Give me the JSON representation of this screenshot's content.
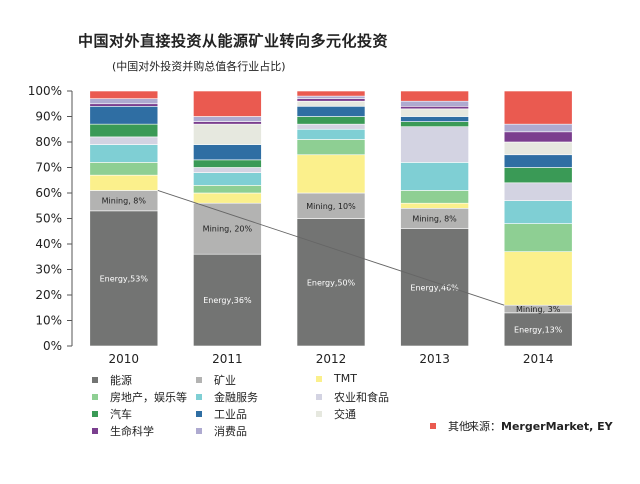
{
  "title": "中国对外直接投资从能源矿业转向多元化投资",
  "subtitle": "(中国对外投资并购总值各行业占比)",
  "source_prefix": "来源：",
  "source_text": "MergerMarket, EY",
  "chart_data": {
    "type": "bar",
    "stacked": true,
    "categories": [
      "2010",
      "2011",
      "2012",
      "2013",
      "2014"
    ],
    "ylim": [
      0,
      100
    ],
    "yticks": [
      "0%",
      "10%",
      "20%",
      "30%",
      "40%",
      "50%",
      "60%",
      "70%",
      "80%",
      "90%",
      "100%"
    ],
    "series": [
      {
        "name": "能源",
        "color": "#737473",
        "values": [
          53,
          36,
          50,
          46,
          13
        ]
      },
      {
        "name": "矿业",
        "color": "#b3b3b2",
        "values": [
          8,
          20,
          10,
          8,
          3
        ]
      },
      {
        "name": "TMT",
        "color": "#fbf08c",
        "values": [
          6,
          4,
          15,
          2,
          21
        ]
      },
      {
        "name": "房地产，娱乐等",
        "color": "#8ecf93",
        "values": [
          5,
          3,
          6,
          5,
          11
        ]
      },
      {
        "name": "金融服务",
        "color": "#7fcfd4",
        "values": [
          7,
          5,
          4,
          11,
          9
        ]
      },
      {
        "name": "农业和食品",
        "color": "#d3d3e2",
        "values": [
          3,
          2,
          2,
          14,
          7
        ]
      },
      {
        "name": "汽车",
        "color": "#3a9a56",
        "values": [
          5,
          3,
          3,
          2,
          6
        ]
      },
      {
        "name": "工业品",
        "color": "#2f6ea3",
        "values": [
          7,
          6,
          4,
          2,
          5
        ]
      },
      {
        "name": "交通",
        "color": "#e6e8df",
        "values": [
          0,
          8,
          2,
          3,
          5
        ]
      },
      {
        "name": "生命科学",
        "color": "#7a3e8e",
        "values": [
          1,
          1,
          1,
          1,
          4
        ]
      },
      {
        "name": "消费品",
        "color": "#aeaad0",
        "values": [
          2,
          2,
          1,
          2,
          3
        ]
      },
      {
        "name": "其他",
        "color": "#ea5a50",
        "values": [
          3,
          10,
          2,
          4,
          13
        ]
      }
    ],
    "data_labels": [
      {
        "category": "2010",
        "series": "能源",
        "text": "Energy,53%"
      },
      {
        "category": "2010",
        "series": "矿业",
        "text": "Mining, 8%"
      },
      {
        "category": "2011",
        "series": "能源",
        "text": "Energy,36%"
      },
      {
        "category": "2011",
        "series": "矿业",
        "text": "Mining, 20%"
      },
      {
        "category": "2012",
        "series": "能源",
        "text": "Energy,50%"
      },
      {
        "category": "2012",
        "series": "矿业",
        "text": "Mining, 10%"
      },
      {
        "category": "2013",
        "series": "能源",
        "text": "Energy,46%"
      },
      {
        "category": "2013",
        "series": "矿业",
        "text": "Mining, 8%"
      },
      {
        "category": "2014",
        "series": "能源",
        "text": "Energy,13%"
      },
      {
        "category": "2014",
        "series": "矿业",
        "text": "Mining, 3%"
      }
    ],
    "trend_line": {
      "from": [
        "2010",
        61
      ],
      "to": [
        "2014",
        16
      ]
    },
    "grid": false,
    "legend_position": "bottom"
  }
}
